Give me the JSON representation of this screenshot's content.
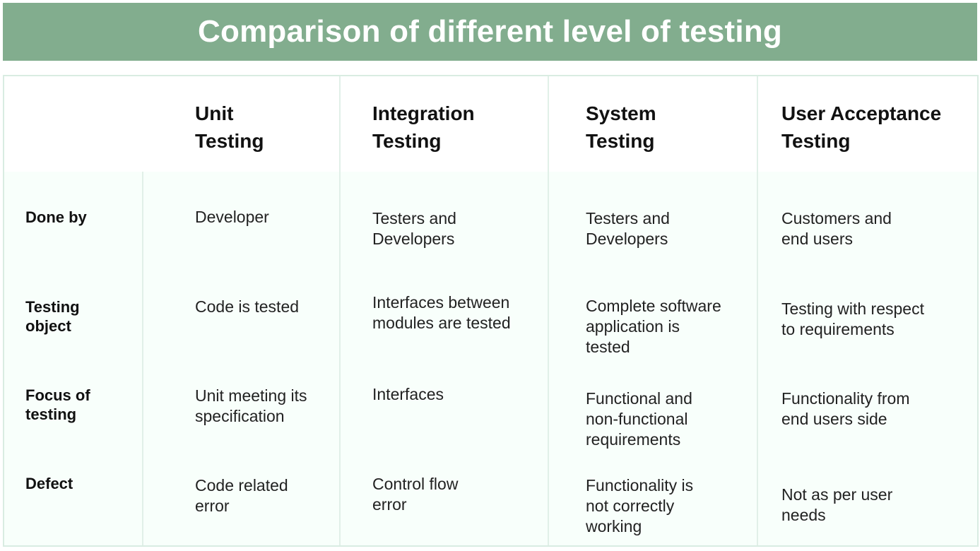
{
  "title": "Comparison of different level of testing",
  "columns": [
    "Unit\nTesting",
    "Integration\nTesting",
    "System\nTesting",
    "User Acceptance\nTesting"
  ],
  "rows": [
    {
      "label": "Done by",
      "cells": [
        "Developer",
        "Testers and\nDevelopers",
        "Testers and\nDevelopers",
        "Customers and\nend users"
      ]
    },
    {
      "label": "Testing\nobject",
      "cells": [
        "Code is tested",
        "Interfaces between\nmodules are tested",
        "Complete software\napplication is\ntested",
        "Testing with respect\nto requirements"
      ]
    },
    {
      "label": "Focus of\ntesting",
      "cells": [
        "Unit meeting its\nspecification",
        "Interfaces",
        "Functional and\nnon-functional\nrequirements",
        "Functionality from\nend users side"
      ]
    },
    {
      "label": "Defect",
      "cells": [
        "Code related\nerror",
        "Control flow\nerror",
        "Functionality is\nnot correctly\nworking",
        "Not as per user\nneeds"
      ]
    }
  ]
}
